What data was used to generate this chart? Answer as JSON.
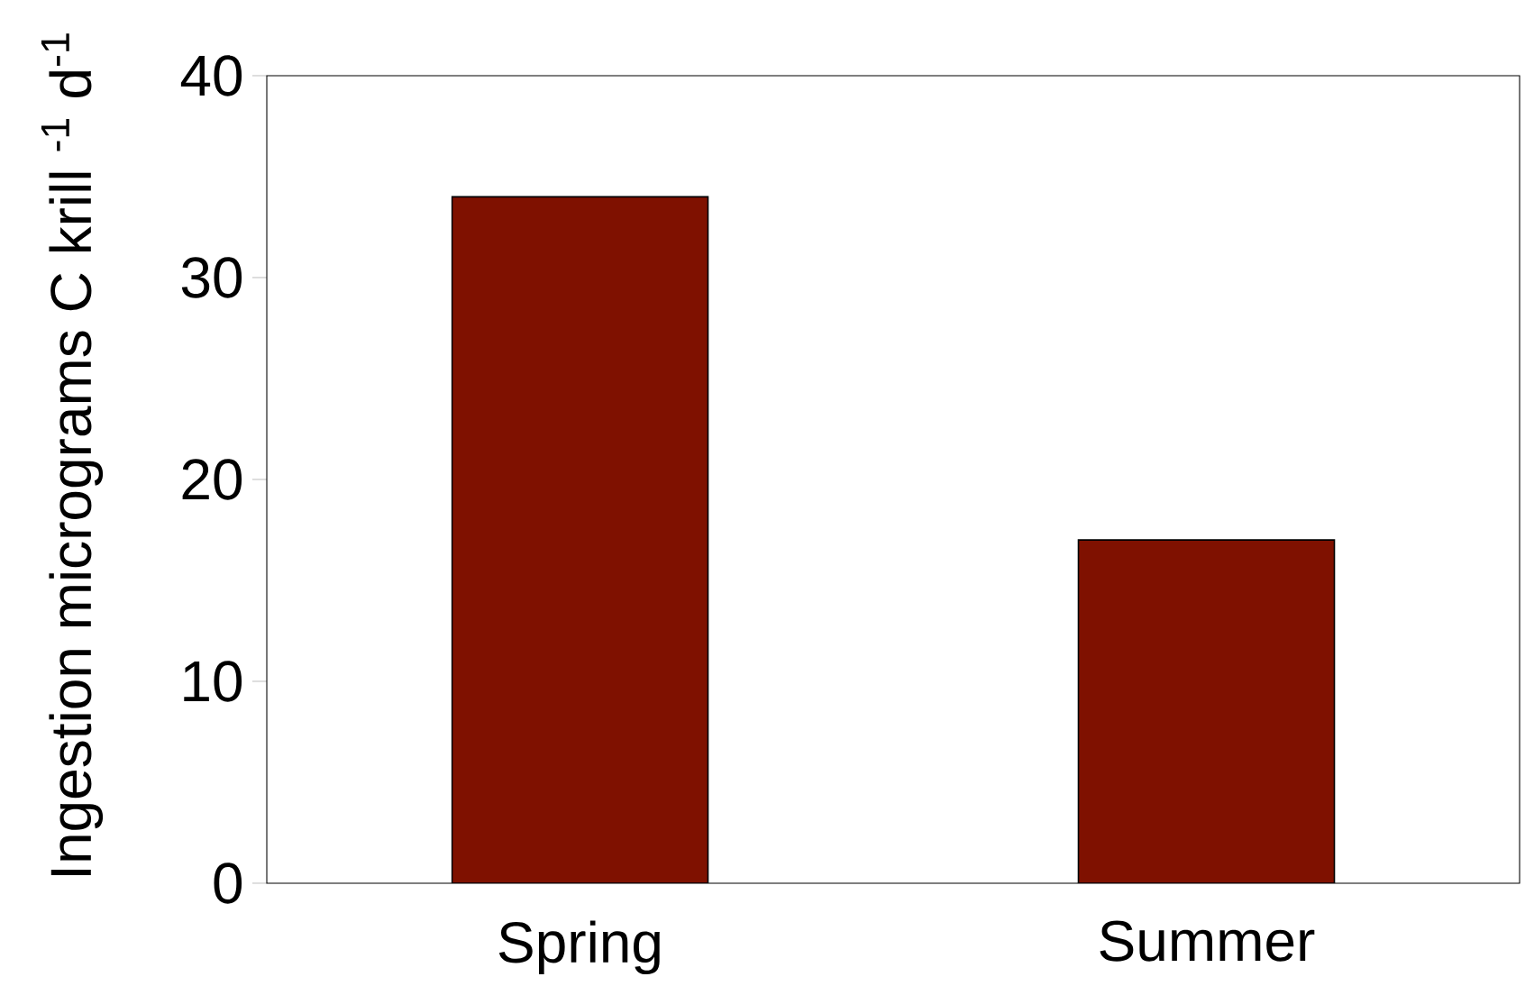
{
  "chart_data": {
    "type": "bar",
    "ylabel": "Ingestion micrograms C krill $^{-1}$ d$^{-1}$",
    "categories": [
      "Spring",
      "Summer"
    ],
    "values": [
      34,
      17
    ],
    "color": "#7f1100",
    "ylim": [
      0,
      40
    ],
    "yticks": [
      0,
      10,
      20,
      30,
      40
    ],
    "grid": false
  }
}
